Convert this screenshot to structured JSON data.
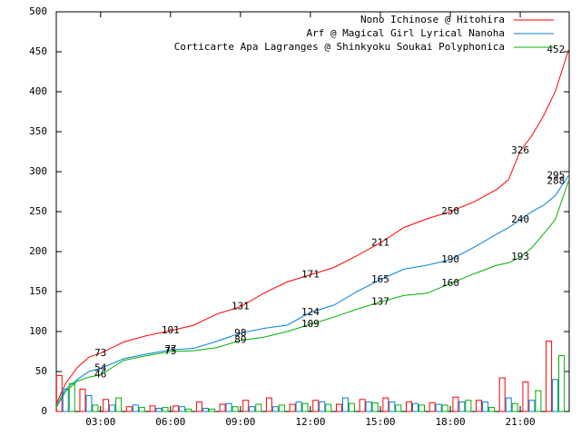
{
  "chart_data": {
    "type": "line",
    "x": [
      1.1,
      1.5,
      2,
      2.5,
      3,
      4,
      5,
      6,
      7,
      8,
      9,
      10,
      11,
      12,
      13,
      14,
      15,
      16,
      17,
      18,
      19,
      20,
      20.5,
      21,
      21.5,
      22,
      22.5,
      23.07
    ],
    "bar_x": [
      1.5,
      2.5,
      3.5,
      4.5,
      5.5,
      6.5,
      7.5,
      8.5,
      9.5,
      10.5,
      11.5,
      12.5,
      13.5,
      14.5,
      15.5,
      16.5,
      17.5,
      18.5,
      19.5,
      20.5,
      21.5,
      22.5
    ],
    "series": [
      {
        "name": "Nono Ichinose @ Hitohira",
        "color": "#ff0000",
        "values": [
          10,
          35,
          55,
          68,
          73,
          87,
          95,
          101,
          108,
          122,
          131,
          148,
          162,
          171,
          180,
          195,
          211,
          230,
          241,
          250,
          262,
          278,
          290,
          326,
          345,
          370,
          400,
          452
        ],
        "value_labels": [
          null,
          null,
          null,
          null,
          "73",
          null,
          null,
          "101",
          null,
          null,
          "131",
          null,
          null,
          "171",
          null,
          null,
          "211",
          null,
          null,
          "250",
          null,
          null,
          null,
          "326",
          null,
          null,
          null,
          "452"
        ],
        "counts": [
          45,
          28,
          15,
          6,
          7,
          7,
          12,
          9,
          14,
          17,
          9,
          14,
          9,
          15,
          17,
          12,
          11,
          18,
          14,
          42,
          37,
          88
        ]
      },
      {
        "name": "Arf @ Magical Girl Lyrical Nanoha",
        "color": "#0080e0",
        "values": [
          8,
          28,
          40,
          50,
          54,
          66,
          72,
          77,
          79,
          88,
          98,
          104,
          108,
          124,
          133,
          150,
          165,
          178,
          183,
          190,
          205,
          222,
          230,
          240,
          250,
          258,
          270,
          295
        ],
        "value_labels": [
          null,
          null,
          null,
          null,
          "54",
          null,
          null,
          "77",
          null,
          null,
          "98",
          null,
          null,
          "124",
          null,
          null,
          "165",
          null,
          null,
          "190",
          null,
          null,
          null,
          "240",
          null,
          null,
          null,
          "295"
        ],
        "counts": [
          28,
          20,
          8,
          8,
          4,
          6,
          4,
          10,
          6,
          6,
          12,
          12,
          17,
          12,
          12,
          10,
          9,
          12,
          12,
          17,
          14,
          40
        ]
      },
      {
        "name": "Corticarte Apa Lagranges @ Shinkyoku Soukai Polyphonica",
        "color": "#00b000",
        "values": [
          5,
          25,
          38,
          43,
          46,
          64,
          70,
          75,
          76,
          80,
          89,
          93,
          100,
          109,
          118,
          128,
          137,
          145,
          148,
          160,
          172,
          183,
          186,
          193,
          205,
          222,
          240,
          288
        ],
        "value_labels": [
          null,
          null,
          null,
          null,
          "46",
          null,
          null,
          "75",
          null,
          null,
          "89",
          null,
          null,
          "109",
          null,
          null,
          "137",
          null,
          null,
          "160",
          null,
          null,
          null,
          "193",
          null,
          null,
          null,
          "288"
        ],
        "counts": [
          35,
          8,
          17,
          5,
          5,
          3,
          3,
          6,
          9,
          8,
          10,
          9,
          10,
          11,
          8,
          8,
          8,
          14,
          5,
          10,
          26,
          70
        ]
      }
    ],
    "xlim": [
      1.1,
      23.1
    ],
    "xticks": [
      {
        "value": 3,
        "label": "03:00"
      },
      {
        "value": 6,
        "label": "06:00"
      },
      {
        "value": 9,
        "label": "09:00"
      },
      {
        "value": 12,
        "label": "12:00"
      },
      {
        "value": 15,
        "label": "15:00"
      },
      {
        "value": 18,
        "label": "18:00"
      },
      {
        "value": 21,
        "label": "21:00"
      }
    ],
    "ylim": [
      0,
      500
    ],
    "yticks": [
      0,
      50,
      100,
      150,
      200,
      250,
      300,
      350,
      400,
      450,
      500
    ],
    "legend": "top-right"
  }
}
